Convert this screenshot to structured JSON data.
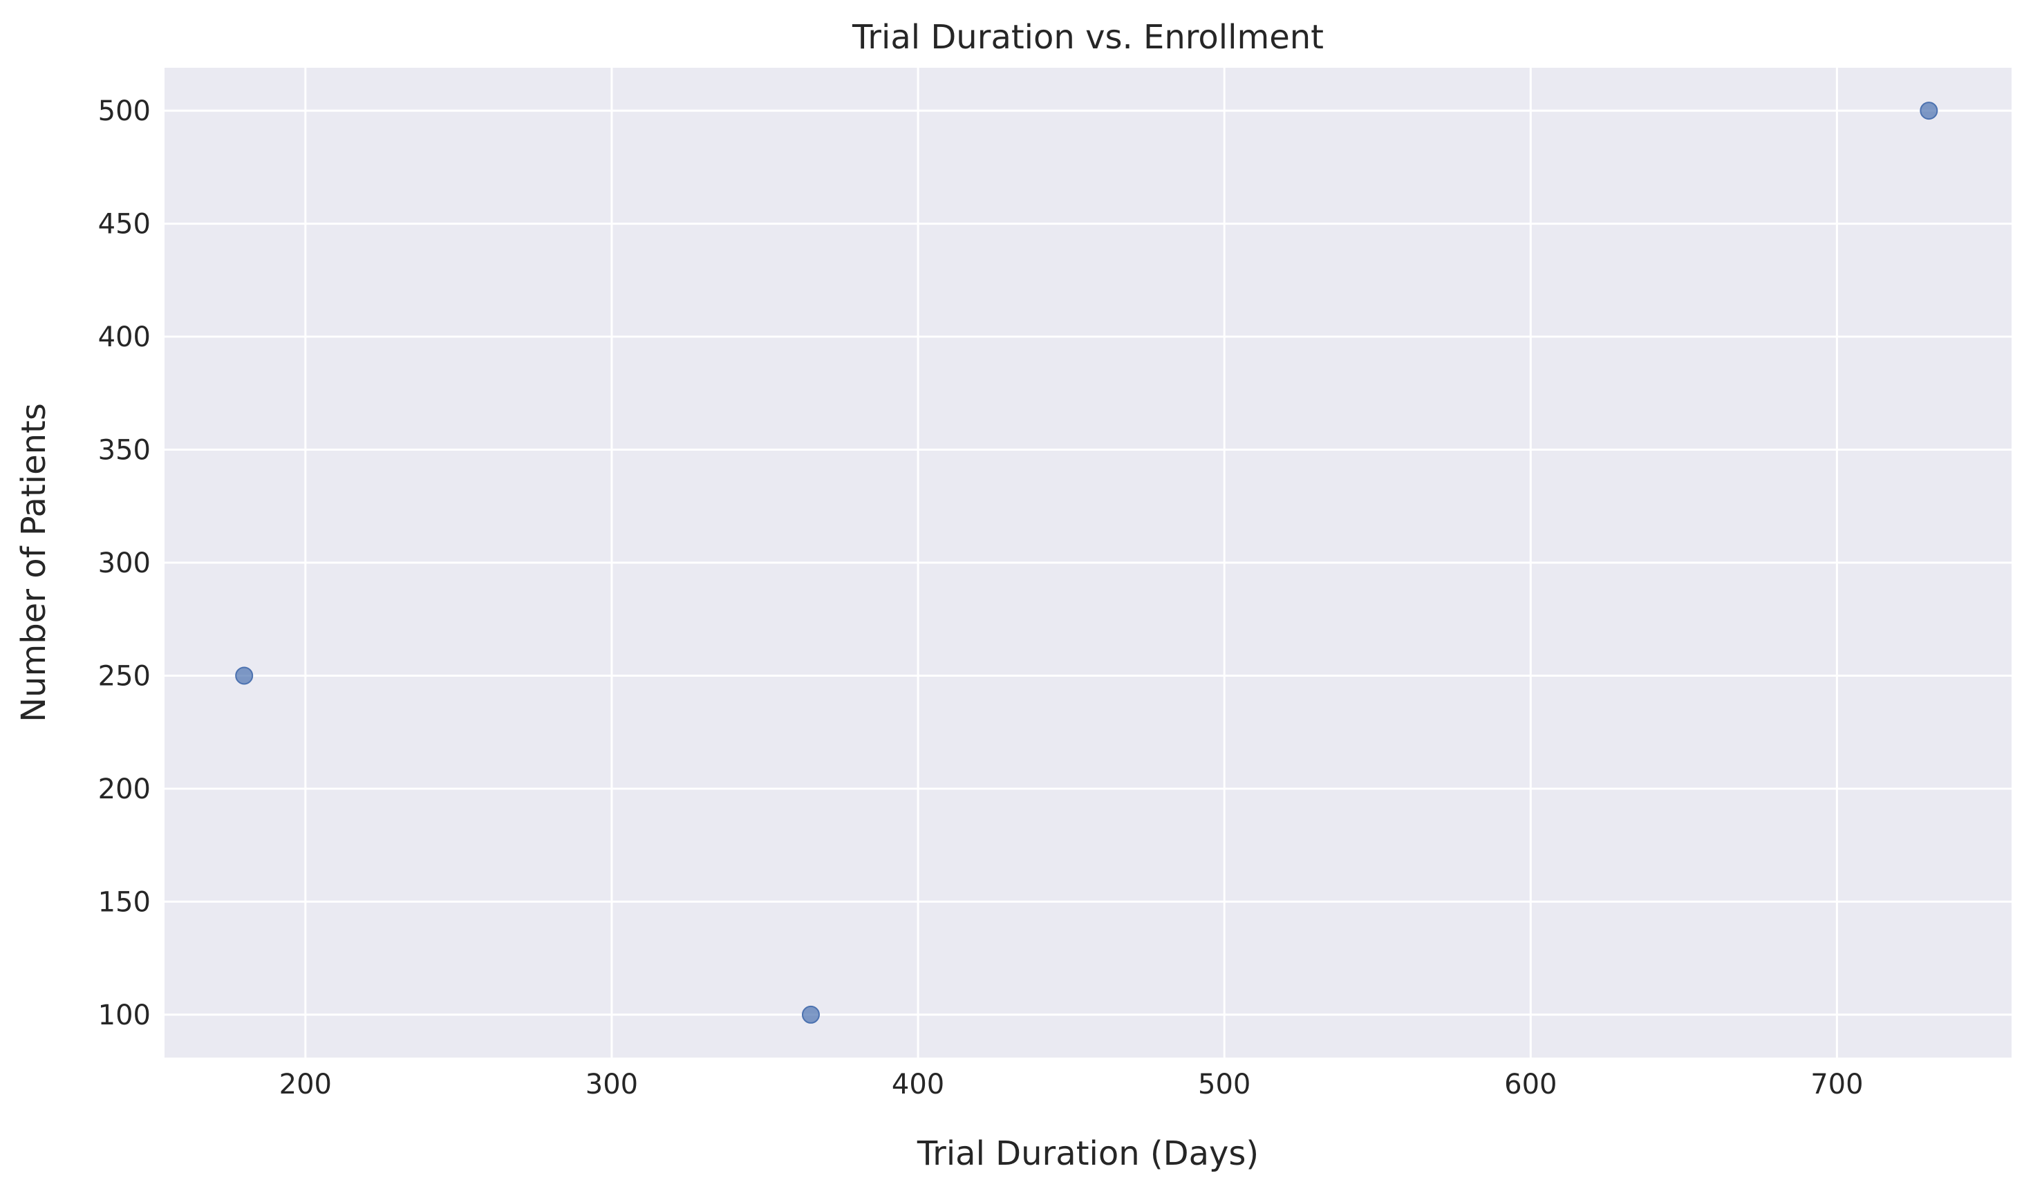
{
  "chart_data": {
    "type": "scatter",
    "title": "Trial Duration vs. Enrollment",
    "xlabel": "Trial Duration (Days)",
    "ylabel": "Number of Patients",
    "xlim": [
      154,
      757
    ],
    "ylim": [
      81,
      519
    ],
    "xticks": [
      200,
      300,
      400,
      500,
      600,
      700
    ],
    "yticks": [
      100,
      150,
      200,
      250,
      300,
      350,
      400,
      450,
      500
    ],
    "grid": true,
    "background_color": "#eaeaf2",
    "point_color": "#4c72b0",
    "points": [
      {
        "x": 180,
        "y": 250
      },
      {
        "x": 365,
        "y": 100
      },
      {
        "x": 730,
        "y": 500
      }
    ]
  }
}
